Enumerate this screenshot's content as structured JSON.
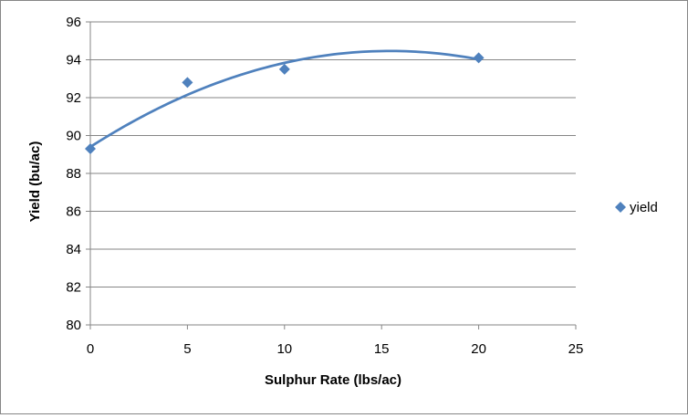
{
  "chart_data": {
    "type": "scatter",
    "title": "",
    "xlabel": "Sulphur Rate (lbs/ac)",
    "ylabel": "Yield (bu/ac)",
    "xlim": [
      0,
      25
    ],
    "ylim": [
      80,
      96
    ],
    "x_ticks": [
      0,
      5,
      10,
      15,
      20,
      25
    ],
    "y_ticks": [
      80,
      82,
      84,
      86,
      88,
      90,
      92,
      94,
      96
    ],
    "grid": "horizontal",
    "legend_position": "right",
    "series": [
      {
        "name": "yield",
        "marker": "diamond",
        "color": "#4F81BD",
        "x": [
          0,
          5,
          10,
          20
        ],
        "y": [
          89.3,
          92.8,
          93.5,
          94.1
        ]
      }
    ],
    "trendline": {
      "type": "polynomial-2",
      "color": "#4F81BD",
      "coefficients": [
        89.4,
        0.6561,
        -0.02125
      ]
    }
  }
}
